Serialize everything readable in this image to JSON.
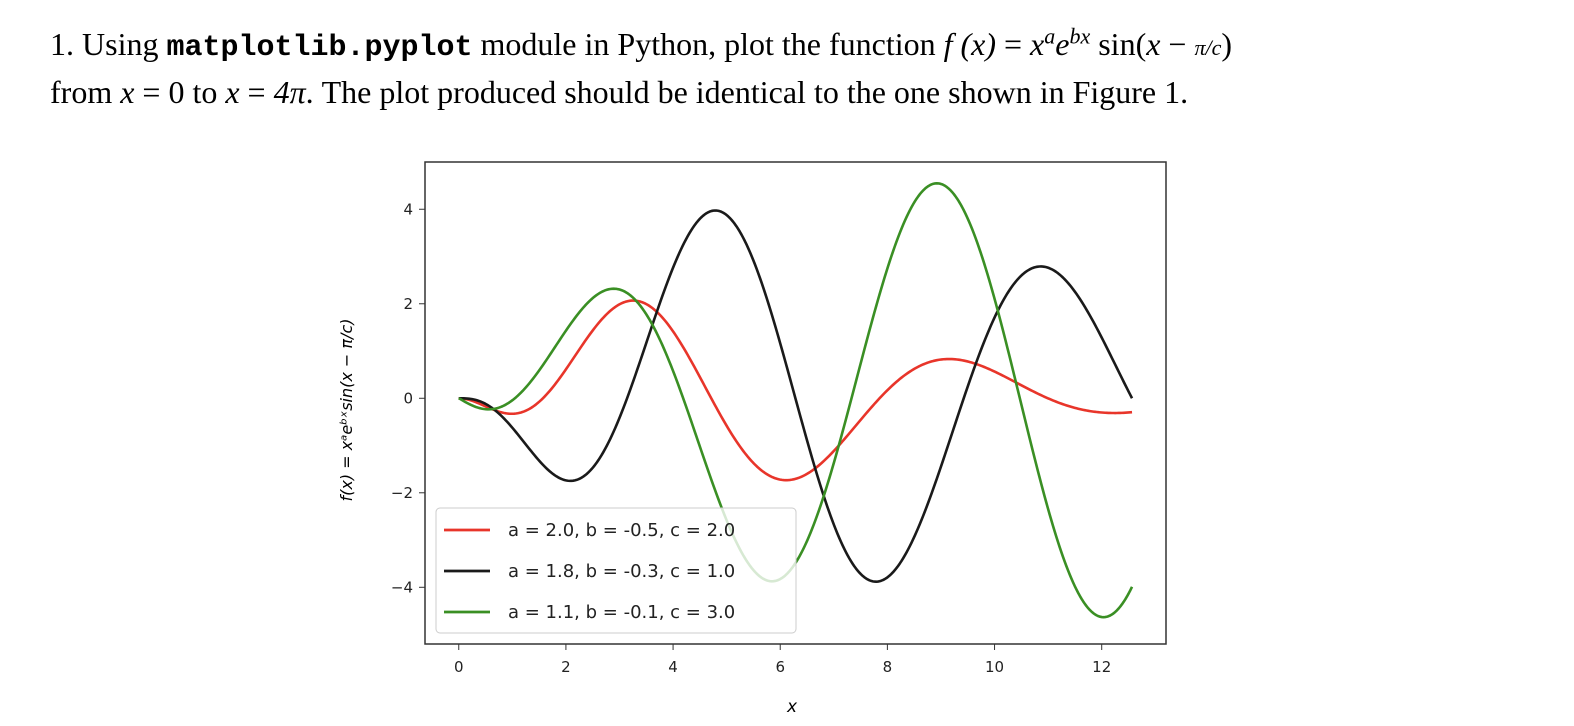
{
  "question": {
    "number": "1.",
    "pre": "Using",
    "code": "matplotlib.pyplot",
    "mid": "module in Python, plot the function",
    "func_lhs": "f (x)",
    "eq": " = ",
    "x": "x",
    "a": "a",
    "e": "e",
    "bx": "bx",
    "sin_open": " sin(",
    "sin_x": "x",
    "minus": " − ",
    "pi_c": "π/c",
    "close": ")",
    "line2_from": "from",
    "line2_x1": "x",
    "line2_eq1": " = 0 to ",
    "line2_x2": "x",
    "line2_eq2": " = ",
    "line2_4pi": "4π",
    "line2_rest": ". The plot produced should be identical to the one shown in Figure 1."
  },
  "chart_data": {
    "type": "line",
    "xlabel": "x",
    "ylabel": "f(x) = xᵃeᵇˣsin(x − π/c)",
    "xlim": [
      -0.63,
      13.2
    ],
    "ylim": [
      -5.2,
      5.0
    ],
    "x_ticks": [
      "0",
      "2",
      "4",
      "6",
      "8",
      "10",
      "12"
    ],
    "y_ticks": [
      "4",
      "2",
      "0",
      "−2",
      "−4"
    ],
    "x_tick_values": [
      0,
      2,
      4,
      6,
      8,
      10,
      12
    ],
    "y_tick_values": [
      4,
      2,
      0,
      -2,
      -4
    ],
    "x_range": [
      0,
      12.566
    ],
    "grid": false,
    "legend_position": "lower-left",
    "series": [
      {
        "name": "a = 2.0, b = -0.5, c = 2.0",
        "a": 2.0,
        "b": -0.5,
        "c": 2.0,
        "color": "#e8352a"
      },
      {
        "name": "a = 1.8, b = -0.3, c = 1.0",
        "a": 1.8,
        "b": -0.3,
        "c": 1.0,
        "color": "#1a1a1a"
      },
      {
        "name": "a = 1.1, b = -0.1, c = 3.0",
        "a": 1.1,
        "b": -0.1,
        "c": 3.0,
        "color": "#3a8f24"
      }
    ]
  }
}
